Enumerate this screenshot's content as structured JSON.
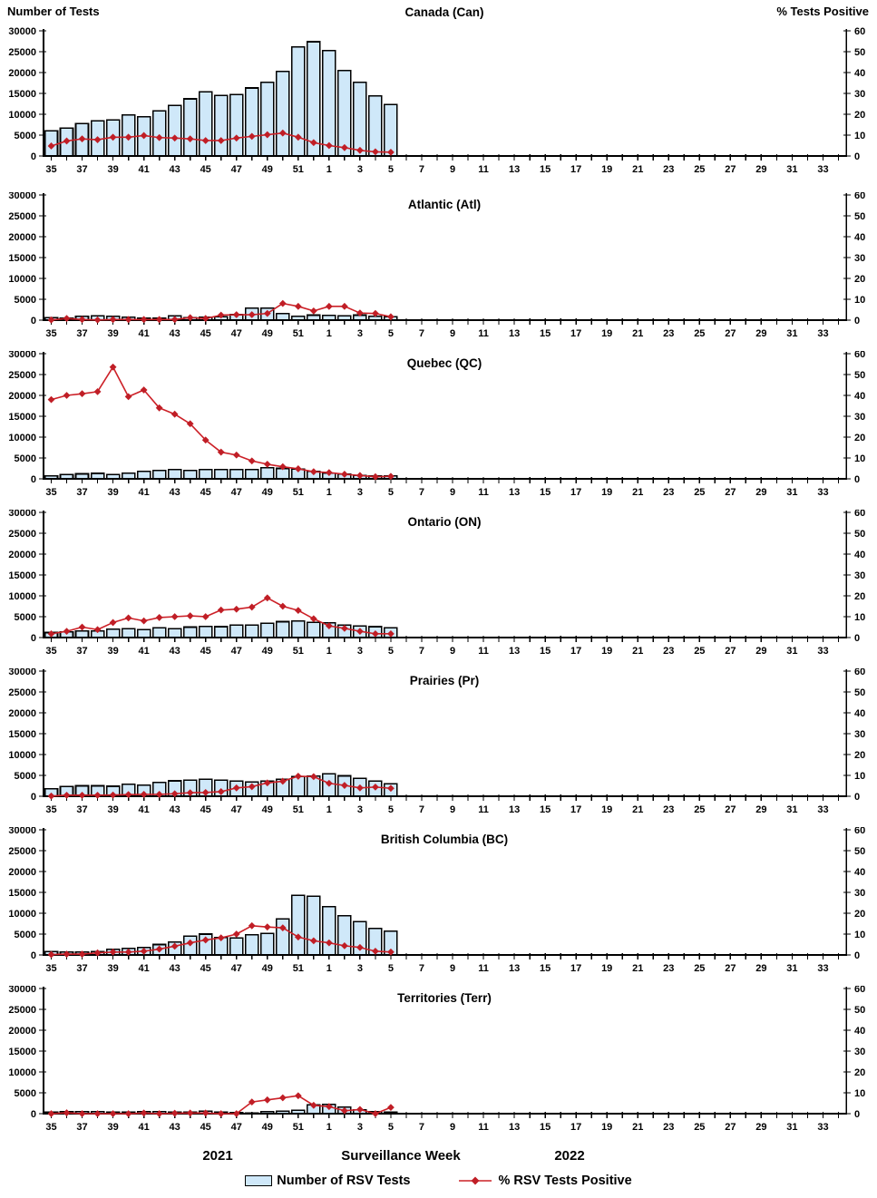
{
  "header": {
    "left_axis_title": "Number of Tests",
    "right_axis_title": "% Tests Positive"
  },
  "footer": {
    "year_left": "2021",
    "axis_title": "Surveillance Week",
    "year_right": "2022"
  },
  "legend": {
    "bars_label": "Number of RSV Tests",
    "line_label": "% RSV Tests Positive"
  },
  "colors": {
    "bar_fill": "#CFE8F9",
    "bar_stroke": "#000000",
    "line": "#CC2027",
    "marker": "#C01E26",
    "axis": "#000000",
    "text": "#000000"
  },
  "axes": {
    "left_max": 30000,
    "left_ticks": [
      0,
      5000,
      10000,
      15000,
      20000,
      25000,
      30000
    ],
    "right_max": 60,
    "right_ticks": [
      0,
      10,
      20,
      30,
      40,
      50,
      60
    ],
    "x_total_weeks": 52,
    "x_tick_labels": [
      "35",
      "37",
      "39",
      "41",
      "43",
      "45",
      "47",
      "49",
      "51",
      "1",
      "3",
      "5",
      "7",
      "9",
      "11",
      "13",
      "15",
      "17",
      "19",
      "21",
      "23",
      "25",
      "27",
      "29",
      "31",
      "33"
    ]
  },
  "chart_data": [
    {
      "type": "bar",
      "title": "Canada (Can)",
      "categories": [
        "35",
        "36",
        "37",
        "38",
        "39",
        "40",
        "41",
        "42",
        "43",
        "44",
        "45",
        "46",
        "47",
        "48",
        "49",
        "50",
        "51",
        "52",
        "1",
        "2",
        "3",
        "4",
        "5"
      ],
      "series": [
        {
          "name": "Number of RSV Tests",
          "axis": "left",
          "values": [
            6000,
            6700,
            7800,
            8400,
            8600,
            9800,
            9400,
            10800,
            12100,
            13700,
            15400,
            14500,
            14700,
            16300,
            17700,
            20300,
            26100,
            27400,
            25300,
            20500,
            17700,
            14400,
            12300
          ]
        },
        {
          "name": "% RSV Tests Positive",
          "axis": "right",
          "values": [
            4.8,
            7.2,
            8.2,
            7.8,
            9.0,
            9.0,
            9.8,
            8.8,
            8.6,
            8.2,
            7.4,
            7.4,
            8.6,
            9.4,
            10.2,
            11.0,
            9.0,
            6.4,
            5.0,
            4.0,
            2.7,
            2.0,
            1.8
          ]
        }
      ]
    },
    {
      "type": "bar",
      "title": "Atlantic (Atl)",
      "categories": [
        "35",
        "36",
        "37",
        "38",
        "39",
        "40",
        "41",
        "42",
        "43",
        "44",
        "45",
        "46",
        "47",
        "48",
        "49",
        "50",
        "51",
        "52",
        "1",
        "2",
        "3",
        "4",
        "5"
      ],
      "series": [
        {
          "name": "Number of RSV Tests",
          "axis": "left",
          "values": [
            600,
            500,
            900,
            1000,
            900,
            700,
            500,
            500,
            1000,
            600,
            700,
            800,
            1300,
            2900,
            2900,
            1600,
            900,
            1200,
            1100,
            1000,
            1200,
            900,
            800
          ]
        },
        {
          "name": "% RSV Tests Positive",
          "axis": "right",
          "values": [
            0.1,
            0.8,
            0.3,
            0.1,
            0.3,
            0.3,
            0.3,
            0.3,
            0.3,
            1.2,
            0.8,
            2.4,
            2.6,
            2.6,
            3.2,
            8.0,
            6.6,
            4.4,
            6.6,
            6.6,
            3.4,
            3.2,
            1.6
          ]
        }
      ]
    },
    {
      "type": "bar",
      "title": "Quebec (QC)",
      "categories": [
        "35",
        "36",
        "37",
        "38",
        "39",
        "40",
        "41",
        "42",
        "43",
        "44",
        "45",
        "46",
        "47",
        "48",
        "49",
        "50",
        "51",
        "52",
        "1",
        "2",
        "3",
        "4",
        "5"
      ],
      "series": [
        {
          "name": "Number of RSV Tests",
          "axis": "left",
          "values": [
            700,
            1000,
            1200,
            1300,
            1000,
            1400,
            1800,
            2000,
            2200,
            2000,
            2200,
            2200,
            2200,
            2200,
            2700,
            2500,
            2300,
            1800,
            1400,
            1100,
            800,
            700,
            700
          ]
        },
        {
          "name": "% RSV Tests Positive",
          "axis": "right",
          "values": [
            38,
            40,
            40.8,
            41.8,
            53.6,
            39.4,
            42.6,
            34,
            31,
            26.4,
            18.6,
            12.8,
            11.4,
            8.6,
            7,
            5.8,
            4.8,
            3.4,
            3,
            2.2,
            1.6,
            1,
            1.2
          ]
        }
      ]
    },
    {
      "type": "bar",
      "title": "Ontario (ON)",
      "categories": [
        "35",
        "36",
        "37",
        "38",
        "39",
        "40",
        "41",
        "42",
        "43",
        "44",
        "45",
        "46",
        "47",
        "48",
        "49",
        "50",
        "51",
        "52",
        "1",
        "2",
        "3",
        "4",
        "5"
      ],
      "series": [
        {
          "name": "Number of RSV Tests",
          "axis": "left",
          "values": [
            1200,
            1400,
            1600,
            1600,
            2000,
            2100,
            1900,
            2300,
            2100,
            2500,
            2700,
            2600,
            3000,
            3000,
            3400,
            3800,
            4000,
            3600,
            3500,
            3000,
            2800,
            2600,
            2300
          ]
        },
        {
          "name": "% RSV Tests Positive",
          "axis": "right",
          "values": [
            1.8,
            3,
            5,
            3.8,
            7.2,
            9.4,
            8,
            9.6,
            10,
            10.4,
            10,
            13.2,
            13.6,
            14.6,
            19,
            15,
            13,
            9,
            5.6,
            4.4,
            3,
            1.8,
            1.8
          ]
        }
      ]
    },
    {
      "type": "bar",
      "title": "Prairies (Pr)",
      "categories": [
        "35",
        "36",
        "37",
        "38",
        "39",
        "40",
        "41",
        "42",
        "43",
        "44",
        "45",
        "46",
        "47",
        "48",
        "49",
        "50",
        "51",
        "52",
        "1",
        "2",
        "3",
        "4",
        "5"
      ],
      "series": [
        {
          "name": "Number of RSV Tests",
          "axis": "left",
          "values": [
            1800,
            2300,
            2500,
            2500,
            2400,
            2900,
            2700,
            3300,
            3700,
            3900,
            4100,
            3900,
            3600,
            3400,
            3600,
            4100,
            4700,
            4800,
            5400,
            4900,
            4300,
            3600,
            3000
          ]
        },
        {
          "name": "% RSV Tests Positive",
          "axis": "right",
          "values": [
            0.1,
            0.5,
            0.5,
            0.5,
            0.6,
            0.8,
            0.9,
            0.9,
            1.2,
            1.7,
            1.8,
            2.2,
            4,
            4.6,
            6.4,
            7.2,
            9.6,
            9.4,
            6.2,
            5.2,
            4,
            4.4,
            3.8
          ]
        }
      ]
    },
    {
      "type": "bar",
      "title": "British Columbia (BC)",
      "categories": [
        "35",
        "36",
        "37",
        "38",
        "39",
        "40",
        "41",
        "42",
        "43",
        "44",
        "45",
        "46",
        "47",
        "48",
        "49",
        "50",
        "51",
        "52",
        "1",
        "2",
        "3",
        "4",
        "5"
      ],
      "series": [
        {
          "name": "Number of RSV Tests",
          "axis": "left",
          "values": [
            800,
            700,
            700,
            800,
            1400,
            1600,
            1800,
            2500,
            3100,
            4500,
            5000,
            4200,
            4100,
            4800,
            5200,
            8600,
            14300,
            14100,
            11600,
            9400,
            8000,
            6400,
            5700
          ]
        },
        {
          "name": "% RSV Tests Positive",
          "axis": "right",
          "values": [
            0.2,
            0.4,
            0.4,
            1,
            1.4,
            1.4,
            1.8,
            2.8,
            4.2,
            5.8,
            7.2,
            8.2,
            10,
            14,
            13.4,
            13,
            8.6,
            6.8,
            5.8,
            4.4,
            3.6,
            1.8,
            1.4
          ]
        }
      ]
    },
    {
      "type": "bar",
      "title": "Territories (Terr)",
      "categories": [
        "35",
        "36",
        "37",
        "38",
        "39",
        "40",
        "41",
        "42",
        "43",
        "44",
        "45",
        "46",
        "47",
        "48",
        "49",
        "50",
        "51",
        "52",
        "1",
        "2",
        "3",
        "4",
        "5"
      ],
      "series": [
        {
          "name": "Number of RSV Tests",
          "axis": "left",
          "values": [
            400,
            500,
            500,
            500,
            400,
            400,
            500,
            500,
            400,
            400,
            600,
            400,
            300,
            200,
            500,
            600,
            800,
            2100,
            2200,
            1600,
            900,
            500,
            400
          ]
        },
        {
          "name": "% RSV Tests Positive",
          "axis": "right",
          "values": [
            0,
            0.4,
            0,
            0,
            0,
            0,
            0.3,
            0,
            0.2,
            0.3,
            0.3,
            0,
            0,
            5.6,
            6.6,
            7.6,
            8.6,
            4,
            3.4,
            1.4,
            2,
            0,
            3
          ]
        }
      ]
    }
  ]
}
